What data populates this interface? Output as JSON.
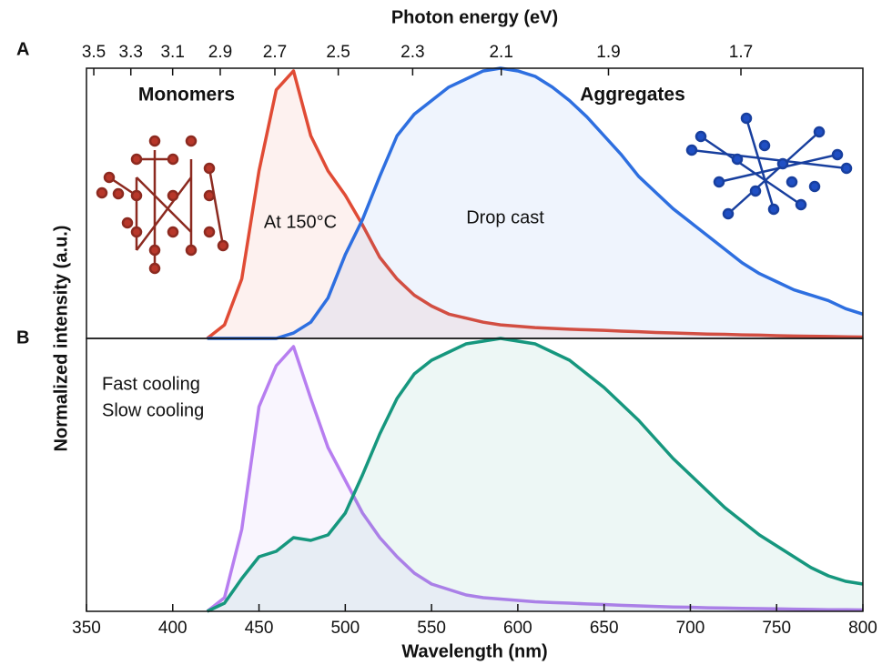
{
  "chart_data": [
    {
      "type": "line",
      "panel_label": "A",
      "x2label": "Photon energy (eV)",
      "x2ticks": [
        3.5,
        3.3,
        3.1,
        2.9,
        2.7,
        2.5,
        2.3,
        2.1,
        1.9,
        1.7
      ],
      "ylabel": "Normalized intensity (a.u.)",
      "xlim": [
        350,
        800
      ],
      "ylim": [
        0,
        1
      ],
      "x": [
        420,
        430,
        440,
        450,
        460,
        470,
        480,
        490,
        500,
        510,
        520,
        530,
        540,
        550,
        560,
        570,
        580,
        590,
        600,
        610,
        620,
        630,
        640,
        650,
        660,
        670,
        680,
        690,
        700,
        710,
        720,
        730,
        740,
        750,
        760,
        770,
        780,
        790,
        800
      ],
      "series": [
        {
          "name": "Monomers",
          "color": "#e04b35",
          "annotation": "At 150°C",
          "values": [
            0,
            0.05,
            0.22,
            0.62,
            0.92,
            0.99,
            0.75,
            0.62,
            0.53,
            0.42,
            0.3,
            0.22,
            0.16,
            0.12,
            0.09,
            0.075,
            0.06,
            0.05,
            0.045,
            0.04,
            0.037,
            0.034,
            0.032,
            0.03,
            0.027,
            0.025,
            0.022,
            0.02,
            0.018,
            0.016,
            0.015,
            0.013,
            0.012,
            0.01,
            0.009,
            0.008,
            0.007,
            0.006,
            0.005
          ]
        },
        {
          "name": "Aggregates",
          "color": "#2e6fe0",
          "annotation": "Drop cast",
          "values": [
            0,
            0,
            0,
            0,
            0,
            0.02,
            0.06,
            0.15,
            0.31,
            0.44,
            0.6,
            0.75,
            0.83,
            0.88,
            0.93,
            0.96,
            0.99,
            1.0,
            0.99,
            0.97,
            0.93,
            0.88,
            0.82,
            0.75,
            0.68,
            0.6,
            0.54,
            0.48,
            0.43,
            0.38,
            0.33,
            0.28,
            0.24,
            0.21,
            0.18,
            0.16,
            0.14,
            0.11,
            0.09
          ]
        }
      ]
    },
    {
      "type": "line",
      "panel_label": "B",
      "xlabel": "Wavelength (nm)",
      "xticks": [
        350,
        400,
        450,
        500,
        550,
        600,
        650,
        700,
        750,
        800
      ],
      "xlim": [
        350,
        800
      ],
      "ylim": [
        0,
        1
      ],
      "x": [
        420,
        430,
        440,
        450,
        460,
        470,
        480,
        490,
        500,
        510,
        520,
        530,
        540,
        550,
        560,
        570,
        580,
        590,
        600,
        610,
        620,
        630,
        640,
        650,
        660,
        670,
        680,
        690,
        700,
        710,
        720,
        730,
        740,
        750,
        760,
        770,
        780,
        790,
        800
      ],
      "series": [
        {
          "name": "Fast cooling",
          "color": "#b77ef0",
          "values": [
            0,
            0.05,
            0.3,
            0.75,
            0.9,
            0.97,
            0.78,
            0.6,
            0.48,
            0.36,
            0.27,
            0.2,
            0.14,
            0.1,
            0.08,
            0.06,
            0.05,
            0.045,
            0.04,
            0.035,
            0.032,
            0.03,
            0.027,
            0.025,
            0.022,
            0.02,
            0.018,
            0.016,
            0.015,
            0.013,
            0.012,
            0.011,
            0.01,
            0.009,
            0.008,
            0.007,
            0.006,
            0.006,
            0.005
          ]
        },
        {
          "name": "Slow cooling",
          "color": "#16977e",
          "values": [
            0,
            0.03,
            0.12,
            0.2,
            0.22,
            0.27,
            0.26,
            0.28,
            0.36,
            0.5,
            0.65,
            0.78,
            0.87,
            0.92,
            0.95,
            0.98,
            0.99,
            1.0,
            0.99,
            0.98,
            0.95,
            0.92,
            0.87,
            0.82,
            0.76,
            0.7,
            0.63,
            0.56,
            0.5,
            0.44,
            0.38,
            0.33,
            0.28,
            0.24,
            0.2,
            0.16,
            0.13,
            0.11,
            0.1
          ]
        }
      ]
    }
  ]
}
